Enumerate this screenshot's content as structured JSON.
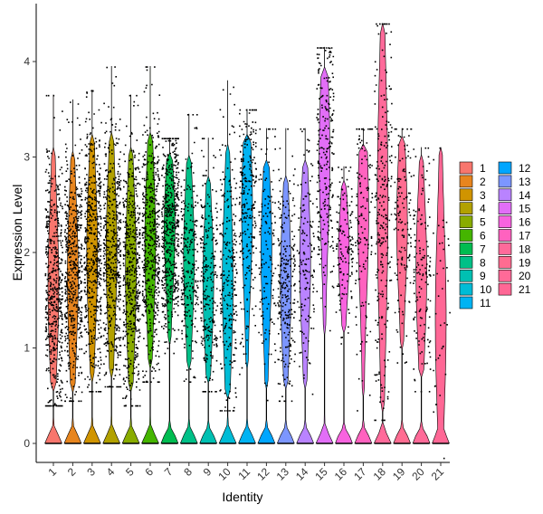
{
  "chart_data": {
    "type": "violin",
    "xlabel": "Identity",
    "ylabel": "Expression Level",
    "ylim": [
      -0.2,
      4.5
    ],
    "yticks": [
      0,
      1,
      2,
      3,
      4
    ],
    "legend_position": "right",
    "grid": false,
    "categories": [
      "1",
      "2",
      "3",
      "4",
      "5",
      "6",
      "7",
      "8",
      "9",
      "10",
      "11",
      "12",
      "13",
      "14",
      "15",
      "16",
      "17",
      "18",
      "19",
      "20",
      "21"
    ],
    "colors": [
      "#F8766D",
      "#E7851E",
      "#D09400",
      "#B2A100",
      "#89AC00",
      "#45B500",
      "#00BC51",
      "#00C087",
      "#00C0B2",
      "#00BCD6",
      "#00B3F2",
      "#00A6FF",
      "#7C96FF",
      "#B983FF",
      "#E26EF7",
      "#F863DF",
      "#FF62BF",
      "#FF6A9A",
      "#FF6C91",
      "#FF6A98",
      "#FF6795"
    ],
    "series": [
      {
        "name": "1",
        "max": 3.65,
        "upper": 3.05,
        "lower": 0.55,
        "median": 1.65,
        "zero_peak": 0.3,
        "point_density": "high"
      },
      {
        "name": "2",
        "max": 3.6,
        "upper": 3.05,
        "lower": 0.6,
        "median": 1.75,
        "zero_peak": 0.25,
        "point_density": "high"
      },
      {
        "name": "3",
        "max": 3.7,
        "upper": 3.15,
        "lower": 0.7,
        "median": 2.0,
        "zero_peak": 0.35,
        "point_density": "high"
      },
      {
        "name": "4",
        "max": 3.95,
        "upper": 3.2,
        "lower": 0.75,
        "median": 2.0,
        "zero_peak": 0.3,
        "point_density": "high"
      },
      {
        "name": "5",
        "max": 3.65,
        "upper": 3.05,
        "lower": 0.55,
        "median": 1.8,
        "zero_peak": 0.35,
        "point_density": "high"
      },
      {
        "name": "6",
        "max": 3.95,
        "upper": 3.2,
        "lower": 0.8,
        "median": 2.1,
        "zero_peak": 0.3,
        "point_density": "high"
      },
      {
        "name": "7",
        "max": 3.2,
        "upper": 3.0,
        "lower": 1.1,
        "median": 2.25,
        "zero_peak": 0.2,
        "point_density": "high"
      },
      {
        "name": "8",
        "max": 3.45,
        "upper": 2.95,
        "lower": 0.8,
        "median": 1.95,
        "zero_peak": 0.35,
        "point_density": "medium"
      },
      {
        "name": "9",
        "max": 3.2,
        "upper": 2.8,
        "lower": 0.7,
        "median": 1.7,
        "zero_peak": 0.4,
        "point_density": "medium"
      },
      {
        "name": "10",
        "max": 3.8,
        "upper": 3.1,
        "lower": 0.5,
        "median": 1.7,
        "zero_peak": 0.35,
        "point_density": "medium"
      },
      {
        "name": "11",
        "max": 3.5,
        "upper": 3.2,
        "lower": 0.8,
        "median": 2.45,
        "zero_peak": 0.3,
        "point_density": "medium"
      },
      {
        "name": "12",
        "max": 3.3,
        "upper": 2.9,
        "lower": 0.6,
        "median": 2.0,
        "zero_peak": 0.55,
        "point_density": "low"
      },
      {
        "name": "13",
        "max": 3.3,
        "upper": 2.8,
        "lower": 0.6,
        "median": 1.7,
        "zero_peak": 0.55,
        "point_density": "medium"
      },
      {
        "name": "14",
        "max": 3.3,
        "upper": 2.9,
        "lower": 0.6,
        "median": 1.9,
        "zero_peak": 0.55,
        "point_density": "low"
      },
      {
        "name": "15",
        "max": 4.15,
        "upper": 3.9,
        "lower": 1.2,
        "median": 3.0,
        "zero_peak": 0.5,
        "point_density": "medium"
      },
      {
        "name": "16",
        "max": 2.9,
        "upper": 2.7,
        "lower": 1.2,
        "median": 2.0,
        "zero_peak": 0.55,
        "point_density": "low"
      },
      {
        "name": "17",
        "max": 3.3,
        "upper": 3.1,
        "lower": 0.5,
        "median": 2.4,
        "zero_peak": 0.4,
        "point_density": "low"
      },
      {
        "name": "18",
        "max": 4.4,
        "upper": 4.3,
        "lower": 0.4,
        "median": 2.5,
        "zero_peak": 0.55,
        "point_density": "medium"
      },
      {
        "name": "19",
        "max": 3.3,
        "upper": 3.2,
        "lower": 1.0,
        "median": 2.3,
        "zero_peak": 0.4,
        "point_density": "low"
      },
      {
        "name": "20",
        "max": 3.1,
        "upper": 3.0,
        "lower": 0.7,
        "median": 1.8,
        "zero_peak": 0.55,
        "point_density": "low"
      },
      {
        "name": "21",
        "max": 3.1,
        "upper": 3.05,
        "lower": 0.0,
        "median": 1.3,
        "zero_peak": 0.55,
        "point_density": "sparse"
      }
    ]
  }
}
